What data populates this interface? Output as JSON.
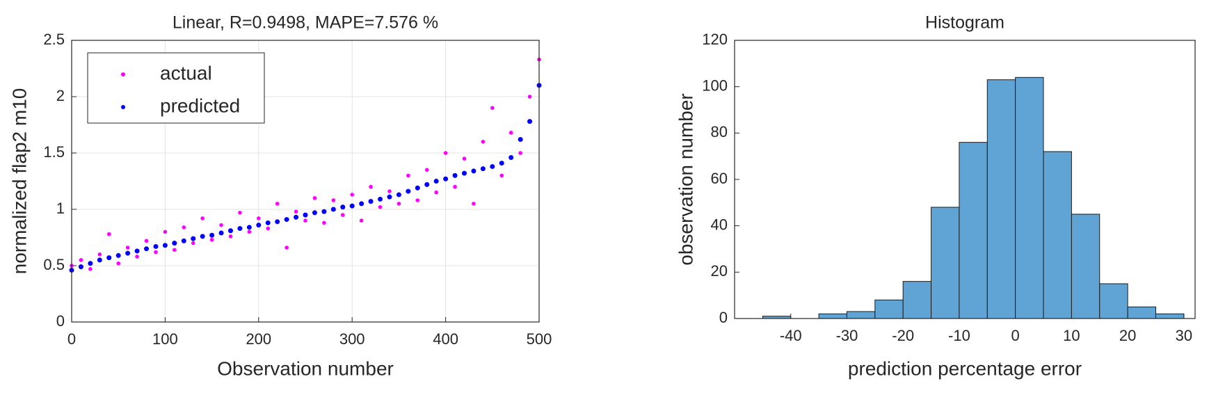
{
  "chart_data": [
    {
      "type": "scatter",
      "title": "Linear, R=0.9498, MAPE=7.576 %",
      "xlabel": "Observation number",
      "ylabel": "normalized flap2 m10",
      "x": [
        0,
        10,
        20,
        30,
        40,
        50,
        60,
        70,
        80,
        90,
        100,
        110,
        120,
        130,
        140,
        150,
        160,
        170,
        180,
        190,
        200,
        210,
        220,
        230,
        240,
        250,
        260,
        270,
        280,
        290,
        300,
        310,
        320,
        330,
        340,
        350,
        360,
        370,
        380,
        390,
        400,
        410,
        420,
        430,
        440,
        450,
        460,
        470,
        480,
        490,
        500
      ],
      "series": [
        {
          "name": "actual",
          "color": "#ff00ff",
          "values": [
            0.5,
            0.55,
            0.47,
            0.6,
            0.78,
            0.52,
            0.66,
            0.58,
            0.72,
            0.62,
            0.8,
            0.64,
            0.84,
            0.7,
            0.92,
            0.73,
            0.86,
            0.76,
            0.97,
            0.8,
            0.92,
            0.83,
            1.05,
            0.66,
            0.98,
            0.9,
            1.1,
            0.88,
            1.08,
            0.95,
            1.13,
            0.9,
            1.2,
            1.02,
            1.16,
            1.05,
            1.3,
            1.08,
            1.35,
            1.15,
            1.5,
            1.2,
            1.45,
            1.05,
            1.6,
            1.9,
            1.3,
            1.68,
            1.5,
            2.0,
            2.33
          ]
        },
        {
          "name": "predicted",
          "color": "#0000ff",
          "values": [
            0.46,
            0.49,
            0.52,
            0.55,
            0.57,
            0.59,
            0.61,
            0.63,
            0.65,
            0.67,
            0.68,
            0.7,
            0.72,
            0.74,
            0.76,
            0.77,
            0.79,
            0.81,
            0.83,
            0.84,
            0.86,
            0.88,
            0.89,
            0.91,
            0.93,
            0.95,
            0.97,
            0.98,
            1.0,
            1.02,
            1.03,
            1.05,
            1.07,
            1.09,
            1.11,
            1.13,
            1.16,
            1.19,
            1.22,
            1.25,
            1.27,
            1.3,
            1.32,
            1.34,
            1.36,
            1.38,
            1.41,
            1.46,
            1.62,
            1.78,
            2.1
          ]
        }
      ],
      "xlim": [
        0,
        500
      ],
      "ylim": [
        0,
        2.5
      ],
      "xticks": [
        0,
        100,
        200,
        300,
        400,
        500
      ],
      "yticks": [
        0,
        0.5,
        1,
        1.5,
        2,
        2.5
      ],
      "grid": true,
      "legend": "upper left"
    },
    {
      "type": "histogram",
      "title": "Histogram",
      "xlabel": "prediction percentage error",
      "ylabel": "observation number",
      "bins": [
        -45,
        -40,
        -35,
        -30,
        -25,
        -20,
        -15,
        -10,
        -5,
        0,
        5,
        10,
        15,
        20,
        25,
        30
      ],
      "values": [
        1,
        0,
        2,
        3,
        8,
        16,
        48,
        76,
        103,
        104,
        72,
        45,
        15,
        5,
        2
      ],
      "color": "#5fa4d5",
      "xlim": [
        -50,
        32
      ],
      "ylim": [
        0,
        120
      ],
      "xticks": [
        -40,
        -30,
        -20,
        -10,
        0,
        10,
        20,
        30
      ],
      "yticks": [
        0,
        20,
        40,
        60,
        80,
        100,
        120
      ],
      "grid": false
    }
  ]
}
